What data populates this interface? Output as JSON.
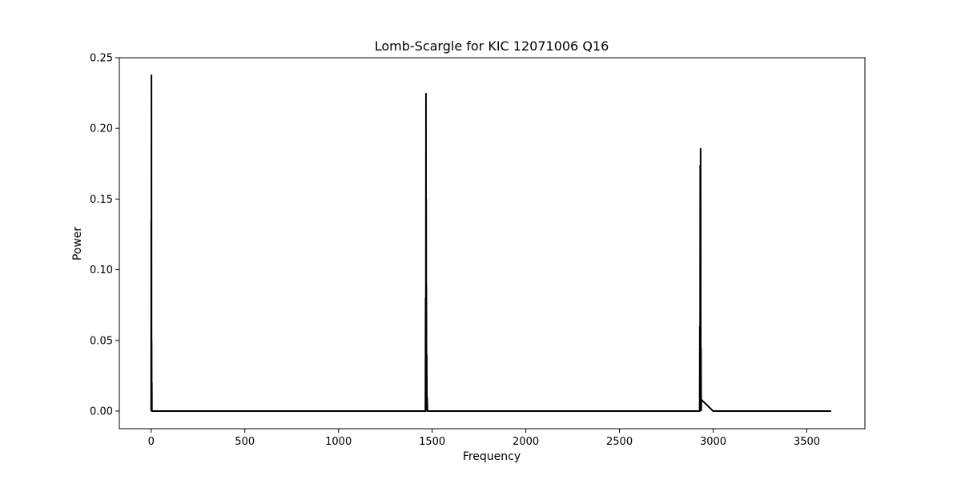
{
  "chart_data": {
    "type": "line",
    "title": "Lomb-Scargle for KIC 12071006 Q16",
    "xlabel": "Frequency",
    "ylabel": "Power",
    "xlim": [
      -170,
      3810
    ],
    "ylim": [
      -0.0125,
      0.25
    ],
    "xticks": [
      0,
      500,
      1000,
      1500,
      2000,
      2500,
      3000,
      3500
    ],
    "xtick_labels": [
      "0",
      "500",
      "1000",
      "1500",
      "2000",
      "2500",
      "3000",
      "3500"
    ],
    "yticks": [
      0.0,
      0.05,
      0.1,
      0.15,
      0.2,
      0.25
    ],
    "ytick_labels": [
      "0.00",
      "0.05",
      "0.10",
      "0.15",
      "0.20",
      "0.25"
    ],
    "grid": false,
    "line_color": "#000000",
    "series": [
      {
        "x": [
          0,
          0.5,
          1,
          1.5,
          2,
          2.5,
          3,
          3.5,
          4,
          500,
          1000,
          1464,
          1465,
          1466,
          1467,
          1467.5,
          1468,
          1468.5,
          1469,
          1470,
          1471,
          1472,
          1473,
          1475,
          2000,
          2500,
          2928,
          2929,
          2930,
          2931,
          2932,
          2933,
          2934,
          2935,
          2936,
          2937,
          3000,
          3630
        ],
        "y": [
          0.0,
          0.135,
          0.0,
          0.238,
          0.0,
          0.05,
          0.0,
          0.02,
          0.0,
          0.0,
          0.0,
          0.0,
          0.08,
          0.0,
          0.225,
          0.0,
          0.15,
          0.0,
          0.09,
          0.0,
          0.04,
          0.0,
          0.01,
          0.0,
          0.0,
          0.0,
          0.0,
          0.06,
          0.0,
          0.174,
          0.0,
          0.186,
          0.0,
          0.045,
          0.0,
          0.008,
          0.0,
          0.0
        ]
      }
    ]
  }
}
